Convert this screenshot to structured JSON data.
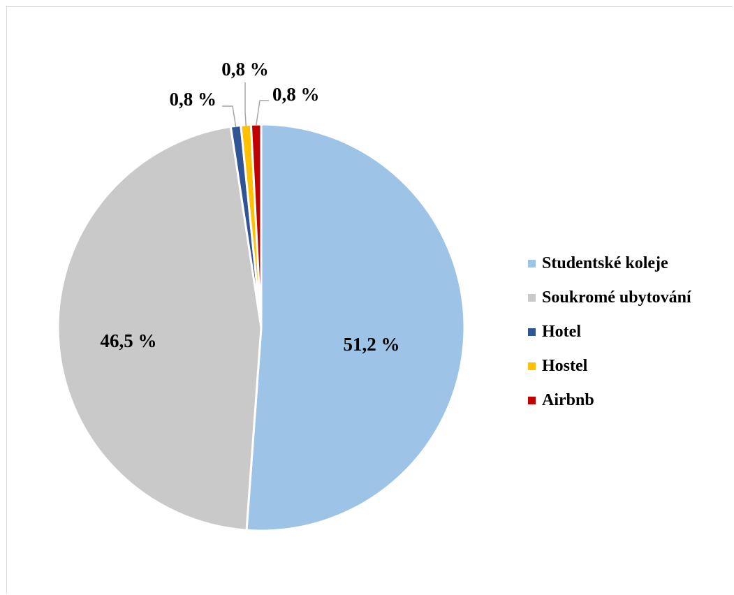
{
  "chart_data": {
    "type": "pie",
    "title": "",
    "legend_position": "right",
    "slices": [
      {
        "name": "Studentské koleje",
        "value": 51.2,
        "label": "51,2 %",
        "color": "#9dc3e6"
      },
      {
        "name": "Soukromé ubytování",
        "value": 46.5,
        "label": "46,5 %",
        "color": "#c9c9c9"
      },
      {
        "name": "Hotel",
        "value": 0.8,
        "label": "0,8 %",
        "color": "#2f5597"
      },
      {
        "name": "Hostel",
        "value": 0.8,
        "label": "0,8 %",
        "color": "#ffc000"
      },
      {
        "name": "Airbnb",
        "value": 0.8,
        "label": "0,8 %",
        "color": "#c00000"
      }
    ]
  }
}
